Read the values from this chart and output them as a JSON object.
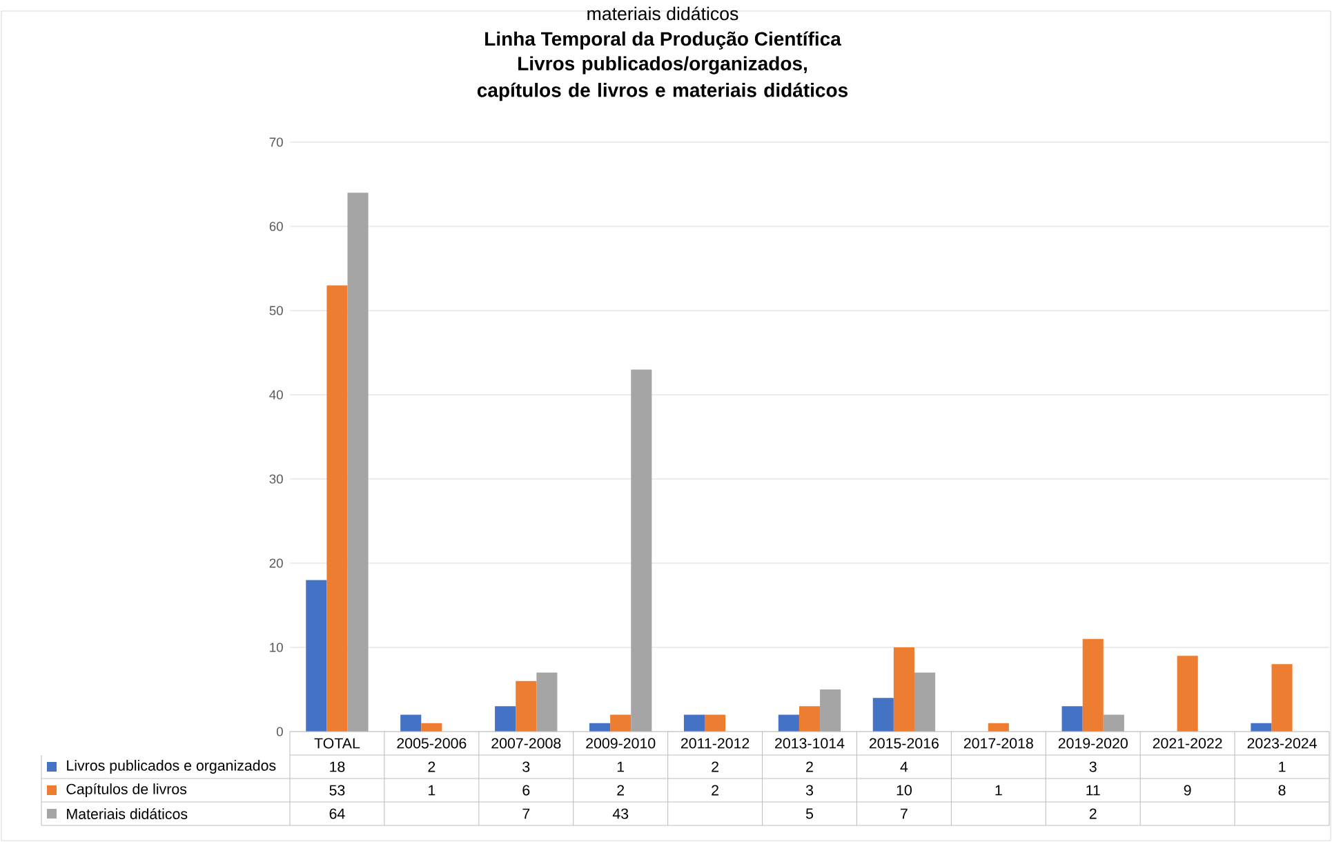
{
  "chart_data": {
    "type": "bar",
    "title": "Linha Temporal da Produção Científica",
    "subtitle": "Livros publicados/organizados, capítulos de livros e materiais didáticos",
    "annotations": [
      "materiais didáticos"
    ],
    "categories": [
      "TOTAL",
      "2005-2006",
      "2007-2008",
      "2009-2010",
      "2011-2012",
      "2013-1014",
      "2015-2016",
      "2017-2018",
      "2019-2020",
      "2021-2022",
      "2023-2024"
    ],
    "series": [
      {
        "name": "Livros publicados e organizados",
        "color": "#4472c4",
        "values": [
          18,
          2,
          3,
          1,
          2,
          2,
          4,
          null,
          3,
          null,
          1
        ]
      },
      {
        "name": "Capítulos de livros",
        "color": "#ed7d31",
        "values": [
          53,
          1,
          6,
          2,
          2,
          3,
          10,
          1,
          11,
          9,
          8
        ]
      },
      {
        "name": "Materiais didáticos",
        "color": "#a5a5a5",
        "values": [
          64,
          null,
          7,
          43,
          null,
          5,
          7,
          null,
          2,
          null,
          null
        ]
      }
    ],
    "ylim": [
      0,
      70
    ],
    "yticks": [
      0,
      10,
      20,
      30,
      40,
      50,
      60,
      70
    ],
    "grid": "y",
    "legend": "bottom",
    "data_labels": true
  }
}
